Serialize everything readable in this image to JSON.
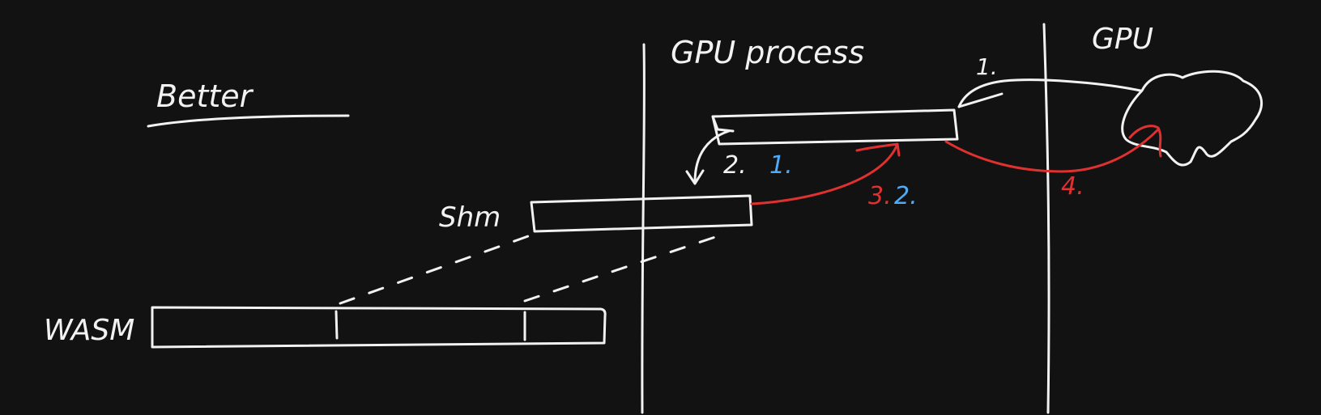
{
  "title": "Better",
  "labels": {
    "gpu_process": "GPU process",
    "gpu": "GPU",
    "shm": "Shm",
    "wasm": "WASM"
  },
  "steps": {
    "white_1": "1.",
    "white_2": "2.",
    "blue_1": "1.",
    "red_3": "3.",
    "blue_2": "2.",
    "red_4": "4."
  },
  "colors": {
    "background": "#121212",
    "stroke": "#f2f2f2",
    "red": "#e03131",
    "blue": "#4dabf7"
  }
}
